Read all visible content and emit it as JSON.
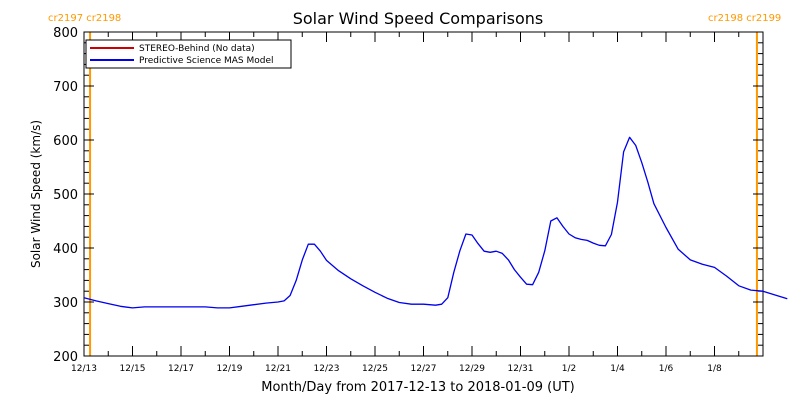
{
  "chart_data": {
    "type": "line",
    "title": "Solar Wind Speed Comparisons",
    "xlabel": "Month/Day from 2017-12-13 to 2018-01-09 (UT)",
    "ylabel": "Solar Wind Speed (km/s)",
    "xlim": [
      "2017-12-13",
      "2018-01-10"
    ],
    "ylim": [
      200,
      800
    ],
    "yticks": [
      200,
      300,
      400,
      500,
      600,
      700,
      800
    ],
    "xticks": [
      {
        "date": "2017-12-13",
        "label": "12/13"
      },
      {
        "date": "2017-12-15",
        "label": "12/15"
      },
      {
        "date": "2017-12-17",
        "label": "12/17"
      },
      {
        "date": "2017-12-19",
        "label": "12/19"
      },
      {
        "date": "2017-12-21",
        "label": "12/21"
      },
      {
        "date": "2017-12-23",
        "label": "12/23"
      },
      {
        "date": "2017-12-25",
        "label": "12/25"
      },
      {
        "date": "2017-12-27",
        "label": "12/27"
      },
      {
        "date": "2017-12-29",
        "label": "12/29"
      },
      {
        "date": "2017-12-31",
        "label": "12/31"
      },
      {
        "date": "2018-01-02",
        "label": "1/2"
      },
      {
        "date": "2018-01-04",
        "label": "1/4"
      },
      {
        "date": "2018-01-06",
        "label": "1/6"
      },
      {
        "date": "2018-01-08",
        "label": "1/8"
      }
    ],
    "legend": {
      "placement": "top-left",
      "entries": [
        {
          "label": "STEREO-Behind (No data)",
          "color": "#cc0000"
        },
        {
          "label": "Predictive Science MAS Model",
          "color": "#0000ee"
        }
      ]
    },
    "rotation_markers": [
      {
        "date": "2017-12-13 06:00",
        "label": "cr2197 cr2198",
        "color": "#ff9900"
      },
      {
        "date": "2018-01-09 18:00",
        "label": "cr2198 cr2199",
        "color": "#ff9900"
      }
    ],
    "series": [
      {
        "name": "Predictive Science MAS Model",
        "color": "#0000ee",
        "points": [
          [
            "2017-12-13 00:00",
            308
          ],
          [
            "2017-12-13 12:00",
            302
          ],
          [
            "2017-12-14 00:00",
            297
          ],
          [
            "2017-12-14 12:00",
            292
          ],
          [
            "2017-12-15 00:00",
            289
          ],
          [
            "2017-12-15 12:00",
            291
          ],
          [
            "2017-12-16 00:00",
            291
          ],
          [
            "2017-12-17 00:00",
            291
          ],
          [
            "2017-12-18 00:00",
            291
          ],
          [
            "2017-12-18 12:00",
            289
          ],
          [
            "2017-12-19 00:00",
            289
          ],
          [
            "2017-12-19 12:00",
            292
          ],
          [
            "2017-12-20 00:00",
            295
          ],
          [
            "2017-12-20 12:00",
            298
          ],
          [
            "2017-12-21 00:00",
            300
          ],
          [
            "2017-12-21 06:00",
            302
          ],
          [
            "2017-12-21 12:00",
            312
          ],
          [
            "2017-12-21 18:00",
            340
          ],
          [
            "2017-12-22 00:00",
            378
          ],
          [
            "2017-12-22 06:00",
            407
          ],
          [
            "2017-12-22 12:00",
            407
          ],
          [
            "2017-12-22 18:00",
            394
          ],
          [
            "2017-12-23 00:00",
            377
          ],
          [
            "2017-12-23 12:00",
            358
          ],
          [
            "2017-12-24 00:00",
            343
          ],
          [
            "2017-12-24 12:00",
            330
          ],
          [
            "2017-12-25 00:00",
            318
          ],
          [
            "2017-12-25 12:00",
            307
          ],
          [
            "2017-12-26 00:00",
            299
          ],
          [
            "2017-12-26 12:00",
            296
          ],
          [
            "2017-12-27 00:00",
            296
          ],
          [
            "2017-12-27 12:00",
            294
          ],
          [
            "2017-12-27 18:00",
            296
          ],
          [
            "2017-12-28 00:00",
            308
          ],
          [
            "2017-12-28 06:00",
            355
          ],
          [
            "2017-12-28 12:00",
            395
          ],
          [
            "2017-12-28 18:00",
            426
          ],
          [
            "2017-12-29 00:00",
            424
          ],
          [
            "2017-12-29 06:00",
            408
          ],
          [
            "2017-12-29 12:00",
            394
          ],
          [
            "2017-12-29 18:00",
            392
          ],
          [
            "2017-12-30 00:00",
            394
          ],
          [
            "2017-12-30 06:00",
            390
          ],
          [
            "2017-12-30 12:00",
            378
          ],
          [
            "2017-12-30 18:00",
            360
          ],
          [
            "2017-12-31 00:00",
            346
          ],
          [
            "2017-12-31 06:00",
            333
          ],
          [
            "2017-12-31 12:00",
            332
          ],
          [
            "2017-12-31 18:00",
            355
          ],
          [
            "2018-01-01 00:00",
            395
          ],
          [
            "2018-01-01 06:00",
            450
          ],
          [
            "2018-01-01 12:00",
            456
          ],
          [
            "2018-01-01 18:00",
            440
          ],
          [
            "2018-01-02 00:00",
            426
          ],
          [
            "2018-01-02 06:00",
            419
          ],
          [
            "2018-01-02 12:00",
            416
          ],
          [
            "2018-01-02 18:00",
            414
          ],
          [
            "2018-01-03 00:00",
            409
          ],
          [
            "2018-01-03 06:00",
            405
          ],
          [
            "2018-01-03 12:00",
            404
          ],
          [
            "2018-01-03 18:00",
            425
          ],
          [
            "2018-01-04 00:00",
            485
          ],
          [
            "2018-01-04 06:00",
            578
          ],
          [
            "2018-01-04 12:00",
            605
          ],
          [
            "2018-01-04 18:00",
            590
          ],
          [
            "2018-01-05 00:00",
            558
          ],
          [
            "2018-01-05 06:00",
            522
          ],
          [
            "2018-01-05 12:00",
            482
          ],
          [
            "2018-01-06 00:00",
            438
          ],
          [
            "2018-01-06 12:00",
            398
          ],
          [
            "2018-01-07 00:00",
            378
          ],
          [
            "2018-01-07 12:00",
            370
          ],
          [
            "2018-01-08 00:00",
            364
          ],
          [
            "2018-01-08 12:00",
            348
          ],
          [
            "2018-01-09 00:00",
            330
          ],
          [
            "2018-01-09 12:00",
            322
          ],
          [
            "2018-01-10 00:00",
            320
          ],
          [
            "2018-01-10 12:00",
            313
          ],
          [
            "2018-01-11 00:00",
            306
          ]
        ]
      }
    ]
  }
}
